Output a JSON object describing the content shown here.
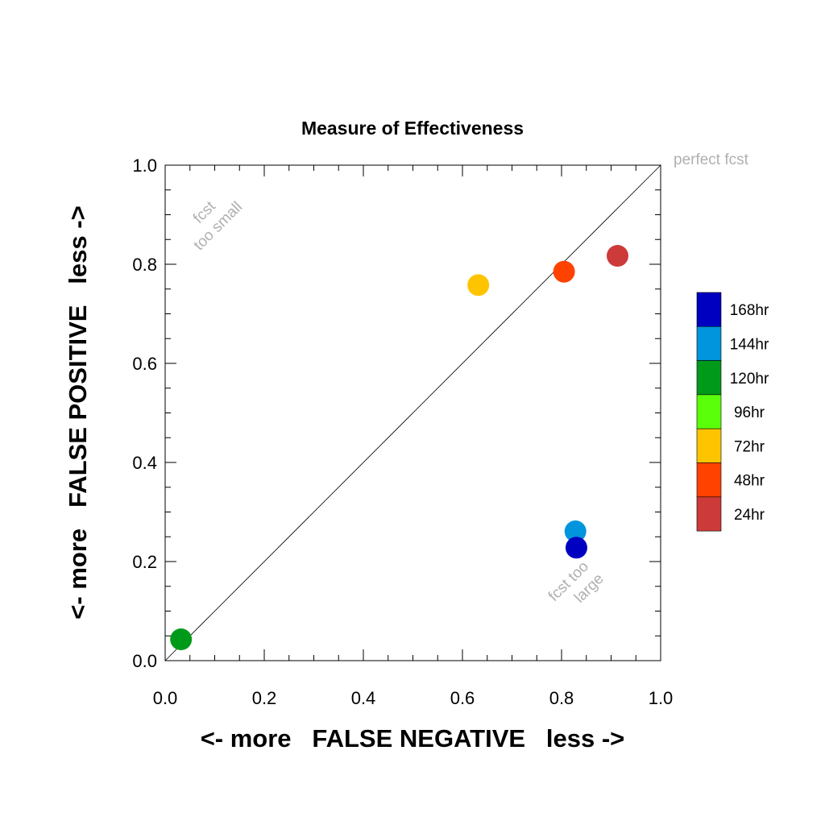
{
  "chart_data": {
    "type": "scatter",
    "title": "Measure of Effectiveness",
    "xlabel": "<- more   FALSE NEGATIVE   less ->",
    "ylabel": "<- more   FALSE POSITIVE   less ->",
    "xlim": [
      0.0,
      1.0
    ],
    "ylim": [
      0.0,
      1.0
    ],
    "xticks": [
      "0.0",
      "0.2",
      "0.4",
      "0.6",
      "0.8",
      "1.0"
    ],
    "yticks": [
      "0.0",
      "0.2",
      "0.4",
      "0.6",
      "0.8",
      "1.0"
    ],
    "grid": false,
    "reference_line": {
      "x": [
        0,
        1
      ],
      "y": [
        0,
        1
      ]
    },
    "annotations": {
      "perfect": "perfect fcst",
      "too_small_1": "fcst",
      "too_small_2": "too small",
      "too_large_1": "fcst too",
      "too_large_2": "large"
    },
    "legend_position": "right",
    "series": [
      {
        "name": "168hr",
        "color": "#0000c0",
        "x": 0.83,
        "y": 0.228
      },
      {
        "name": "144hr",
        "color": "#0095dd",
        "x": 0.828,
        "y": 0.261
      },
      {
        "name": "120hr",
        "color": "#009a1a",
        "x": 0.032,
        "y": 0.043
      },
      {
        "name": "96hr",
        "color": "#5aff0a",
        "x": null,
        "y": null
      },
      {
        "name": "72hr",
        "color": "#ffc400",
        "x": 0.632,
        "y": 0.758
      },
      {
        "name": "48hr",
        "color": "#ff4200",
        "x": 0.805,
        "y": 0.785
      },
      {
        "name": "24hr",
        "color": "#cc3a3a",
        "x": 0.913,
        "y": 0.817
      }
    ]
  }
}
